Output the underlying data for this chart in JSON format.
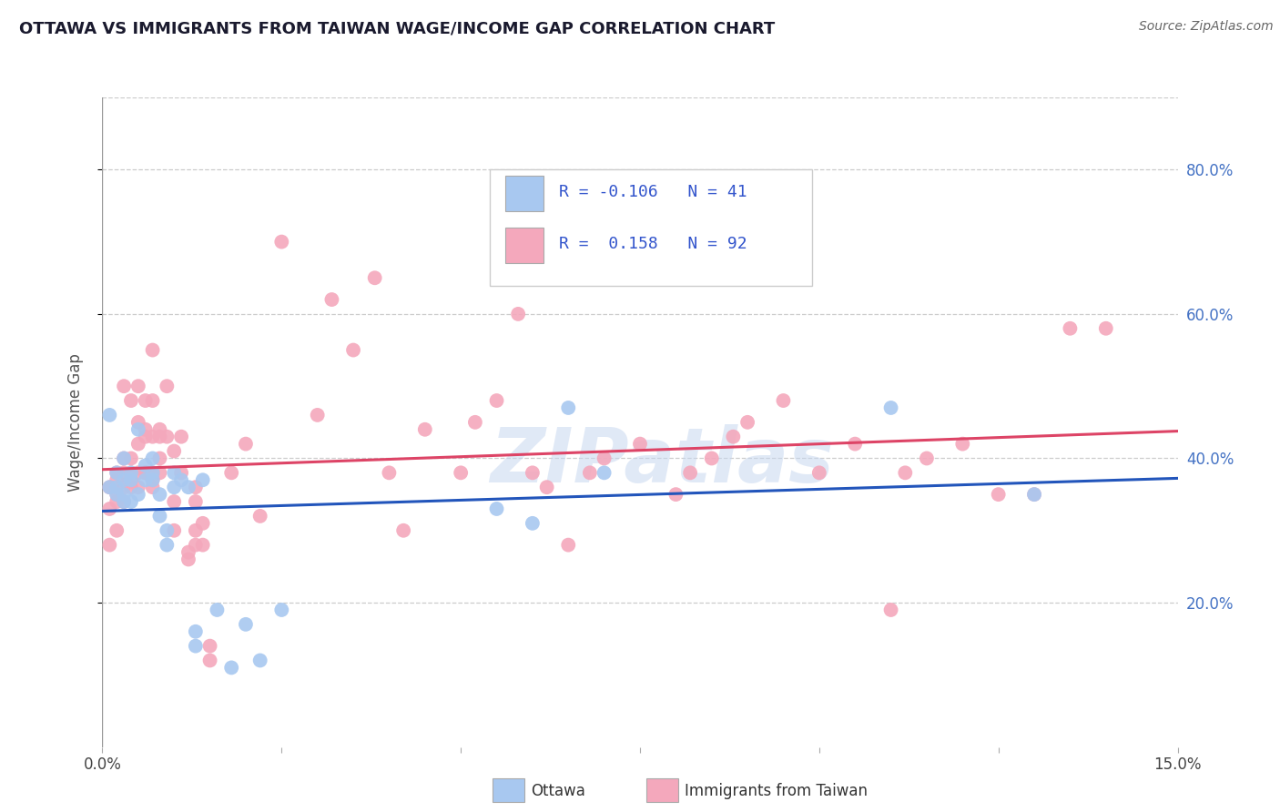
{
  "title": "OTTAWA VS IMMIGRANTS FROM TAIWAN WAGE/INCOME GAP CORRELATION CHART",
  "source": "Source: ZipAtlas.com",
  "ylabel": "Wage/Income Gap",
  "legend_ottawa": {
    "R": "-0.106",
    "N": "41"
  },
  "legend_taiwan": {
    "R": "0.158",
    "N": "92"
  },
  "ottawa_color": "#a8c8f0",
  "taiwan_color": "#f4a8bc",
  "ottawa_line_color": "#2255bb",
  "taiwan_line_color": "#dd4466",
  "watermark": "ZIPatlas",
  "xlim": [
    0.0,
    0.15
  ],
  "ylim": [
    0.0,
    0.9
  ],
  "yticks": [
    0.2,
    0.4,
    0.6,
    0.8
  ],
  "ytick_labels": [
    "20.0%",
    "40.0%",
    "60.0%",
    "80.0%"
  ],
  "xticks": [
    0.0,
    0.025,
    0.05,
    0.075,
    0.1,
    0.125,
    0.15
  ],
  "xtick_labels": [
    "0.0%",
    "",
    "",
    "",
    "",
    "",
    "15.0%"
  ],
  "ottawa_x": [
    0.001,
    0.001,
    0.002,
    0.002,
    0.002,
    0.003,
    0.003,
    0.003,
    0.003,
    0.004,
    0.004,
    0.004,
    0.005,
    0.005,
    0.006,
    0.006,
    0.007,
    0.007,
    0.007,
    0.008,
    0.008,
    0.009,
    0.009,
    0.01,
    0.01,
    0.011,
    0.012,
    0.013,
    0.013,
    0.014,
    0.016,
    0.018,
    0.02,
    0.022,
    0.025,
    0.055,
    0.06,
    0.065,
    0.07,
    0.11,
    0.13
  ],
  "ottawa_y": [
    0.36,
    0.46,
    0.35,
    0.36,
    0.38,
    0.34,
    0.35,
    0.37,
    0.4,
    0.34,
    0.37,
    0.38,
    0.35,
    0.44,
    0.37,
    0.39,
    0.37,
    0.38,
    0.4,
    0.32,
    0.35,
    0.28,
    0.3,
    0.36,
    0.38,
    0.37,
    0.36,
    0.14,
    0.16,
    0.37,
    0.19,
    0.11,
    0.17,
    0.12,
    0.19,
    0.33,
    0.31,
    0.47,
    0.38,
    0.47,
    0.35
  ],
  "taiwan_x": [
    0.001,
    0.001,
    0.001,
    0.002,
    0.002,
    0.002,
    0.002,
    0.002,
    0.003,
    0.003,
    0.003,
    0.003,
    0.003,
    0.004,
    0.004,
    0.004,
    0.004,
    0.004,
    0.005,
    0.005,
    0.005,
    0.005,
    0.005,
    0.006,
    0.006,
    0.006,
    0.006,
    0.006,
    0.007,
    0.007,
    0.007,
    0.007,
    0.007,
    0.007,
    0.008,
    0.008,
    0.008,
    0.008,
    0.009,
    0.009,
    0.01,
    0.01,
    0.01,
    0.011,
    0.011,
    0.012,
    0.012,
    0.013,
    0.013,
    0.013,
    0.013,
    0.014,
    0.014,
    0.015,
    0.015,
    0.018,
    0.02,
    0.022,
    0.025,
    0.03,
    0.032,
    0.035,
    0.038,
    0.04,
    0.042,
    0.045,
    0.05,
    0.052,
    0.055,
    0.058,
    0.06,
    0.062,
    0.065,
    0.068,
    0.07,
    0.075,
    0.08,
    0.082,
    0.085,
    0.088,
    0.09,
    0.095,
    0.1,
    0.105,
    0.11,
    0.112,
    0.115,
    0.12,
    0.125,
    0.13,
    0.135,
    0.14
  ],
  "taiwan_y": [
    0.28,
    0.33,
    0.36,
    0.3,
    0.34,
    0.35,
    0.37,
    0.38,
    0.34,
    0.36,
    0.38,
    0.4,
    0.5,
    0.36,
    0.37,
    0.38,
    0.4,
    0.48,
    0.36,
    0.38,
    0.42,
    0.45,
    0.5,
    0.38,
    0.38,
    0.43,
    0.44,
    0.48,
    0.36,
    0.37,
    0.38,
    0.43,
    0.48,
    0.55,
    0.38,
    0.4,
    0.43,
    0.44,
    0.43,
    0.5,
    0.3,
    0.34,
    0.41,
    0.38,
    0.43,
    0.26,
    0.27,
    0.28,
    0.3,
    0.34,
    0.36,
    0.28,
    0.31,
    0.12,
    0.14,
    0.38,
    0.42,
    0.32,
    0.7,
    0.46,
    0.62,
    0.55,
    0.65,
    0.38,
    0.3,
    0.44,
    0.38,
    0.45,
    0.48,
    0.6,
    0.38,
    0.36,
    0.28,
    0.38,
    0.4,
    0.42,
    0.35,
    0.38,
    0.4,
    0.43,
    0.45,
    0.48,
    0.38,
    0.42,
    0.19,
    0.38,
    0.4,
    0.42,
    0.35,
    0.35,
    0.58,
    0.58
  ]
}
